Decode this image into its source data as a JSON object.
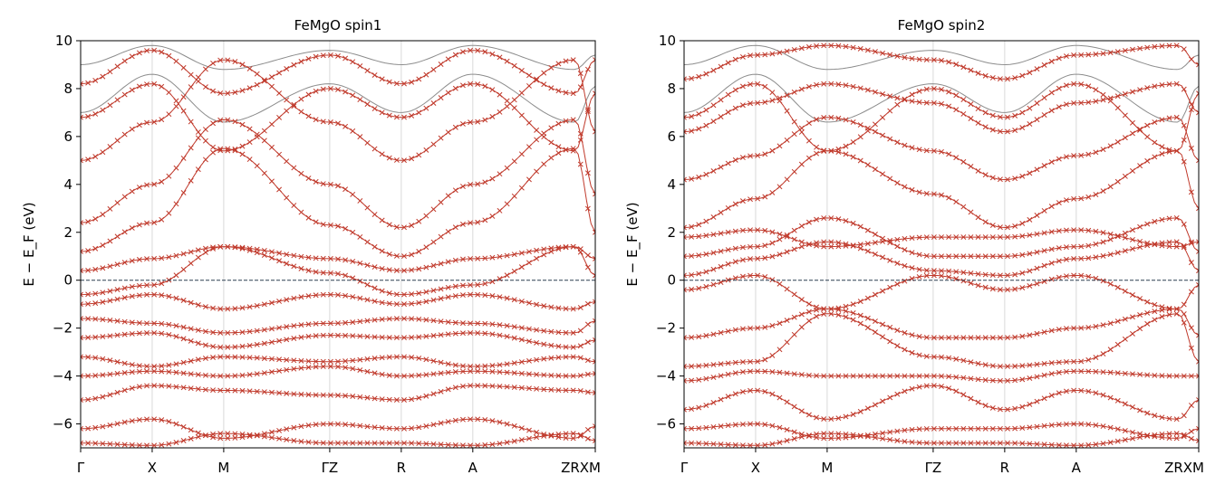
{
  "chart_data": [
    {
      "type": "line",
      "title": "FeMgO  spin1",
      "ylabel": "E − E_F  (eV)",
      "ylim": [
        -7,
        10
      ],
      "yticks": [
        -6,
        -4,
        -2,
        0,
        2,
        4,
        6,
        8,
        10
      ],
      "grid": false,
      "fermi_level": 0,
      "high_symmetry_points": [
        "Γ",
        "X",
        "M",
        "ΓZ",
        "R",
        "A",
        "ZRXM"
      ],
      "series": [
        {
          "markers": "x",
          "values": [
            0.4,
            0.9,
            1.4,
            0.9,
            0.4,
            0.9,
            1.4,
            0.9
          ]
        },
        {
          "markers": "x",
          "values": [
            1.2,
            2.4,
            5.5,
            2.3,
            1.0,
            2.4,
            5.5,
            2.0
          ]
        },
        {
          "markers": "x",
          "values": [
            2.4,
            4.0,
            6.7,
            4.0,
            2.2,
            4.0,
            6.7,
            3.6
          ]
        },
        {
          "markers": "x",
          "values": [
            5.0,
            6.6,
            9.2,
            6.6,
            5.0,
            6.6,
            9.2,
            6.2
          ]
        },
        {
          "markers": "x",
          "values": [
            -0.6,
            -0.2,
            1.4,
            0.3,
            -0.6,
            -0.2,
            1.4,
            0.2
          ]
        },
        {
          "markers": "x",
          "values": [
            -1.0,
            -0.6,
            -1.2,
            -0.6,
            -1.0,
            -0.6,
            -1.2,
            -0.9
          ]
        },
        {
          "markers": "x",
          "values": [
            -1.6,
            -1.8,
            -2.2,
            -1.8,
            -1.6,
            -1.8,
            -2.2,
            -1.7
          ]
        },
        {
          "markers": "x",
          "values": [
            -2.4,
            -2.2,
            -2.8,
            -2.3,
            -2.4,
            -2.2,
            -2.8,
            -2.5
          ]
        },
        {
          "markers": "x",
          "values": [
            -3.2,
            -3.6,
            -3.2,
            -3.4,
            -3.2,
            -3.6,
            -3.2,
            -3.4
          ]
        },
        {
          "markers": "x",
          "values": [
            -4.0,
            -3.8,
            -4.0,
            -3.6,
            -4.0,
            -3.8,
            -4.0,
            -3.9
          ]
        },
        {
          "markers": "x",
          "values": [
            -5.0,
            -4.4,
            -4.6,
            -4.8,
            -5.0,
            -4.4,
            -4.6,
            -4.7
          ]
        },
        {
          "markers": "x",
          "values": [
            -6.2,
            -5.8,
            -6.6,
            -6.0,
            -6.2,
            -5.8,
            -6.6,
            -6.1
          ]
        },
        {
          "markers": "x",
          "values": [
            -6.8,
            -6.9,
            -6.4,
            -6.8,
            -6.8,
            -6.9,
            -6.4,
            -6.7
          ]
        },
        {
          "markers": "x",
          "values": [
            6.8,
            8.2,
            5.4,
            8.0,
            6.8,
            8.2,
            5.4,
            7.8
          ]
        },
        {
          "markers": "x",
          "values": [
            8.2,
            9.6,
            7.8,
            9.4,
            8.2,
            9.6,
            7.8,
            9.2
          ]
        }
      ]
    },
    {
      "type": "line",
      "title": "FeMgO  spin2",
      "ylabel": "E − E_F  (eV)",
      "ylim": [
        -7,
        10
      ],
      "yticks": [
        -6,
        -4,
        -2,
        0,
        2,
        4,
        6,
        8,
        10
      ],
      "grid": false,
      "fermi_level": 0,
      "high_symmetry_points": [
        "Γ",
        "X",
        "M",
        "ΓZ",
        "R",
        "A",
        "ZRXM"
      ],
      "series": [
        {
          "markers": "x",
          "values": [
            -2.4,
            -2.0,
            -1.2,
            -2.4,
            -2.4,
            -2.0,
            -1.2,
            -2.3
          ]
        },
        {
          "markers": "x",
          "values": [
            0.2,
            0.9,
            1.6,
            0.4,
            0.2,
            0.9,
            1.6,
            0.4
          ]
        },
        {
          "markers": "x",
          "values": [
            1.0,
            1.4,
            2.6,
            1.0,
            1.0,
            1.4,
            2.6,
            1.2
          ]
        },
        {
          "markers": "x",
          "values": [
            1.8,
            2.1,
            1.4,
            1.8,
            1.8,
            2.1,
            1.4,
            1.6
          ]
        },
        {
          "markers": "x",
          "values": [
            -0.4,
            0.2,
            -1.2,
            0.2,
            -0.4,
            0.2,
            -1.2,
            -0.2
          ]
        },
        {
          "markers": "x",
          "values": [
            -3.6,
            -3.4,
            -1.4,
            -3.2,
            -3.6,
            -3.4,
            -1.4,
            -3.4
          ]
        },
        {
          "markers": "x",
          "values": [
            -4.2,
            -3.8,
            -4.0,
            -4.0,
            -4.2,
            -3.8,
            -4.0,
            -4.0
          ]
        },
        {
          "markers": "x",
          "values": [
            -5.4,
            -4.6,
            -5.8,
            -4.4,
            -5.4,
            -4.6,
            -5.8,
            -5.0
          ]
        },
        {
          "markers": "x",
          "values": [
            -6.2,
            -6.0,
            -6.6,
            -6.2,
            -6.2,
            -6.0,
            -6.6,
            -6.2
          ]
        },
        {
          "markers": "x",
          "values": [
            -6.8,
            -6.9,
            -6.4,
            -6.8,
            -6.8,
            -6.9,
            -6.4,
            -6.7
          ]
        },
        {
          "markers": "x",
          "values": [
            2.2,
            3.4,
            5.4,
            3.6,
            2.2,
            3.4,
            5.4,
            3.0
          ]
        },
        {
          "markers": "x",
          "values": [
            4.2,
            5.2,
            6.8,
            5.4,
            4.2,
            5.2,
            6.8,
            5.0
          ]
        },
        {
          "markers": "x",
          "values": [
            6.2,
            7.4,
            8.2,
            7.4,
            6.2,
            7.4,
            8.2,
            7.0
          ]
        },
        {
          "markers": "x",
          "values": [
            6.8,
            8.2,
            5.4,
            8.0,
            6.8,
            8.2,
            5.4,
            7.8
          ]
        },
        {
          "markers": "x",
          "values": [
            8.4,
            9.4,
            9.8,
            9.2,
            8.4,
            9.4,
            9.8,
            9.0
          ]
        }
      ]
    }
  ],
  "colors": {
    "band": "#c0392b",
    "background_band": "#8c8c8c",
    "fermi_line": "#2c3e50",
    "vline": "#d9d9d9"
  }
}
